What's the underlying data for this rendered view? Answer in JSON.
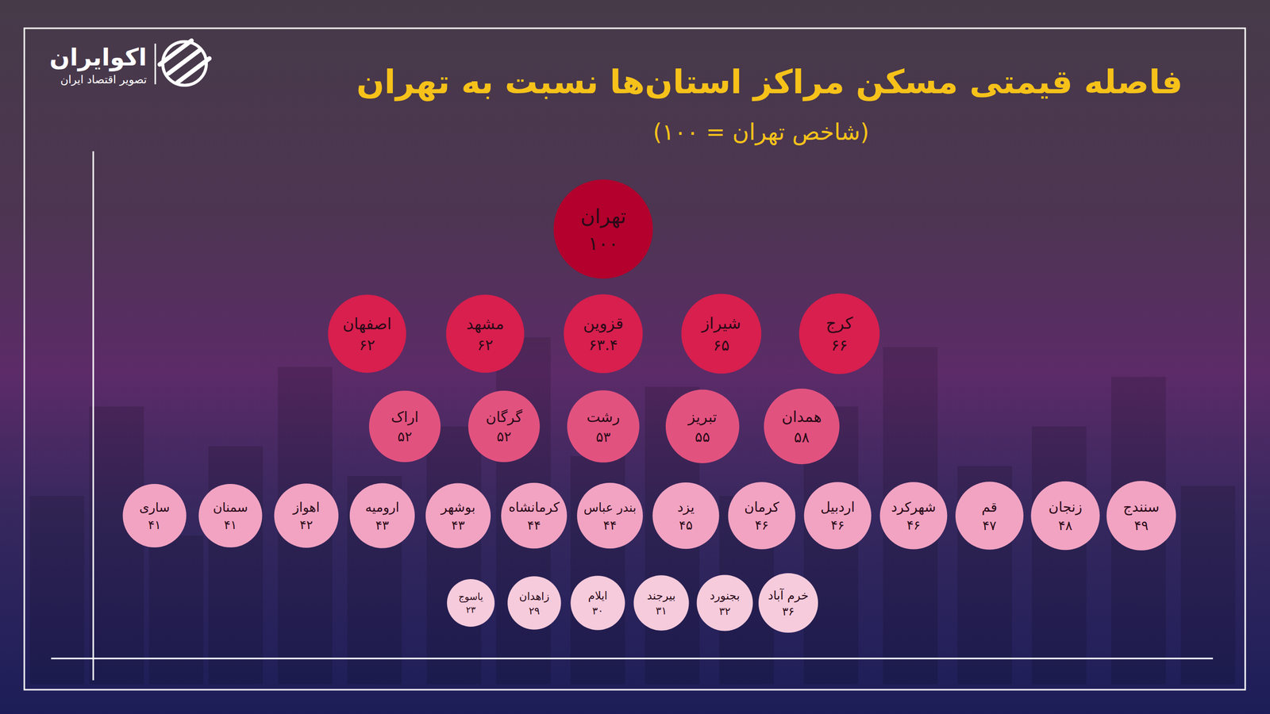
{
  "chart_data": {
    "type": "bubble",
    "title": "فاصله قیمتی مسکن مراکز استان‌ها نسبت به تهران",
    "subtitle": "(شاخص تهران = ۱۰۰)",
    "brand": "اکوایران",
    "brand_tagline": "تصویر اقتصاد ایران",
    "data_labels": true,
    "rows": [
      {
        "color": "#b3002c",
        "categories": [
          "تهران"
        ],
        "values": [
          100
        ],
        "value_labels": [
          "۱۰۰"
        ]
      },
      {
        "color": "#d81f4e",
        "categories": [
          "کرج",
          "شیراز",
          "قزوین",
          "مشهد",
          "اصفهان"
        ],
        "values": [
          66,
          65,
          63.4,
          62,
          62
        ],
        "value_labels": [
          "۶۶",
          "۶۵",
          "۶۳.۴",
          "۶۲",
          "۶۲"
        ]
      },
      {
        "color": "#e2527f",
        "categories": [
          "همدان",
          "تبریز",
          "رشت",
          "گرگان",
          "اراک"
        ],
        "values": [
          58,
          55,
          53,
          52,
          52
        ],
        "value_labels": [
          "۵۸",
          "۵۵",
          "۵۳",
          "۵۲",
          "۵۲"
        ]
      },
      {
        "color": "#f2a3c2",
        "categories": [
          "سنندج",
          "زنجان",
          "قم",
          "شهرکرد",
          "اردبیل",
          "کرمان",
          "یزد",
          "بندر عباس",
          "کرمانشاه",
          "بوشهر",
          "ارومیه",
          "اهواز",
          "سمنان",
          "ساری"
        ],
        "values": [
          49,
          48,
          47,
          46,
          46,
          46,
          45,
          44,
          44,
          43,
          43,
          42,
          41,
          41
        ],
        "value_labels": [
          "۴۹",
          "۴۸",
          "۴۷",
          "۴۶",
          "۴۶",
          "۴۶",
          "۴۵",
          "۴۴",
          "۴۴",
          "۴۳",
          "۴۳",
          "۴۲",
          "۴۱",
          "۴۱"
        ]
      },
      {
        "color": "#f6cbdc",
        "categories": [
          "خرم آباد",
          "بجنورد",
          "بیرجند",
          "ایلام",
          "زاهدان",
          "یاسوج"
        ],
        "values": [
          36,
          32,
          31,
          30,
          29,
          23
        ],
        "value_labels": [
          "۳۶",
          "۳۲",
          "۳۱",
          "۳۰",
          "۲۹",
          "۲۳"
        ]
      }
    ]
  }
}
